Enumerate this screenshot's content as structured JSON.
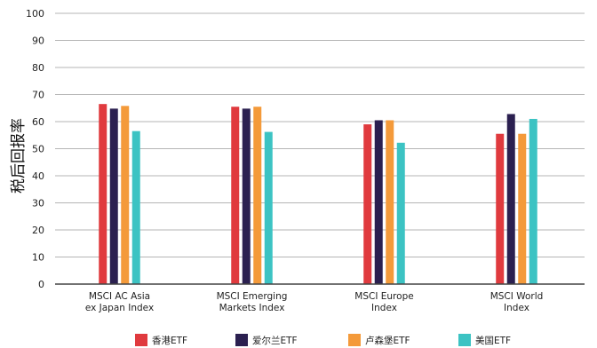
{
  "chart_data": {
    "type": "bar",
    "title": "",
    "xlabel": "",
    "ylabel": "税后回报率",
    "ylim": [
      0,
      100
    ],
    "yticks": [
      0,
      10,
      20,
      30,
      40,
      50,
      60,
      70,
      80,
      90,
      100
    ],
    "grid": true,
    "legend_position": "bottom",
    "categories": [
      [
        "MSCI AC Asia",
        "ex Japan Index"
      ],
      [
        "MSCI Emerging",
        "Markets Index"
      ],
      [
        "MSCI Europe",
        "Index"
      ],
      [
        "MSCI World",
        "Index"
      ]
    ],
    "series": [
      {
        "name": "香港ETF",
        "color": "#e03a3e",
        "values": [
          66.5,
          65.5,
          59.0,
          55.5
        ]
      },
      {
        "name": "爱尔兰ETF",
        "color": "#2b2050",
        "values": [
          64.8,
          64.8,
          60.5,
          62.8
        ]
      },
      {
        "name": "卢森堡ETF",
        "color": "#f49a3a",
        "values": [
          65.8,
          65.5,
          60.5,
          55.5
        ]
      },
      {
        "name": "美国ETF",
        "color": "#3cc3c3",
        "values": [
          56.5,
          56.2,
          52.2,
          61.0
        ]
      }
    ]
  }
}
